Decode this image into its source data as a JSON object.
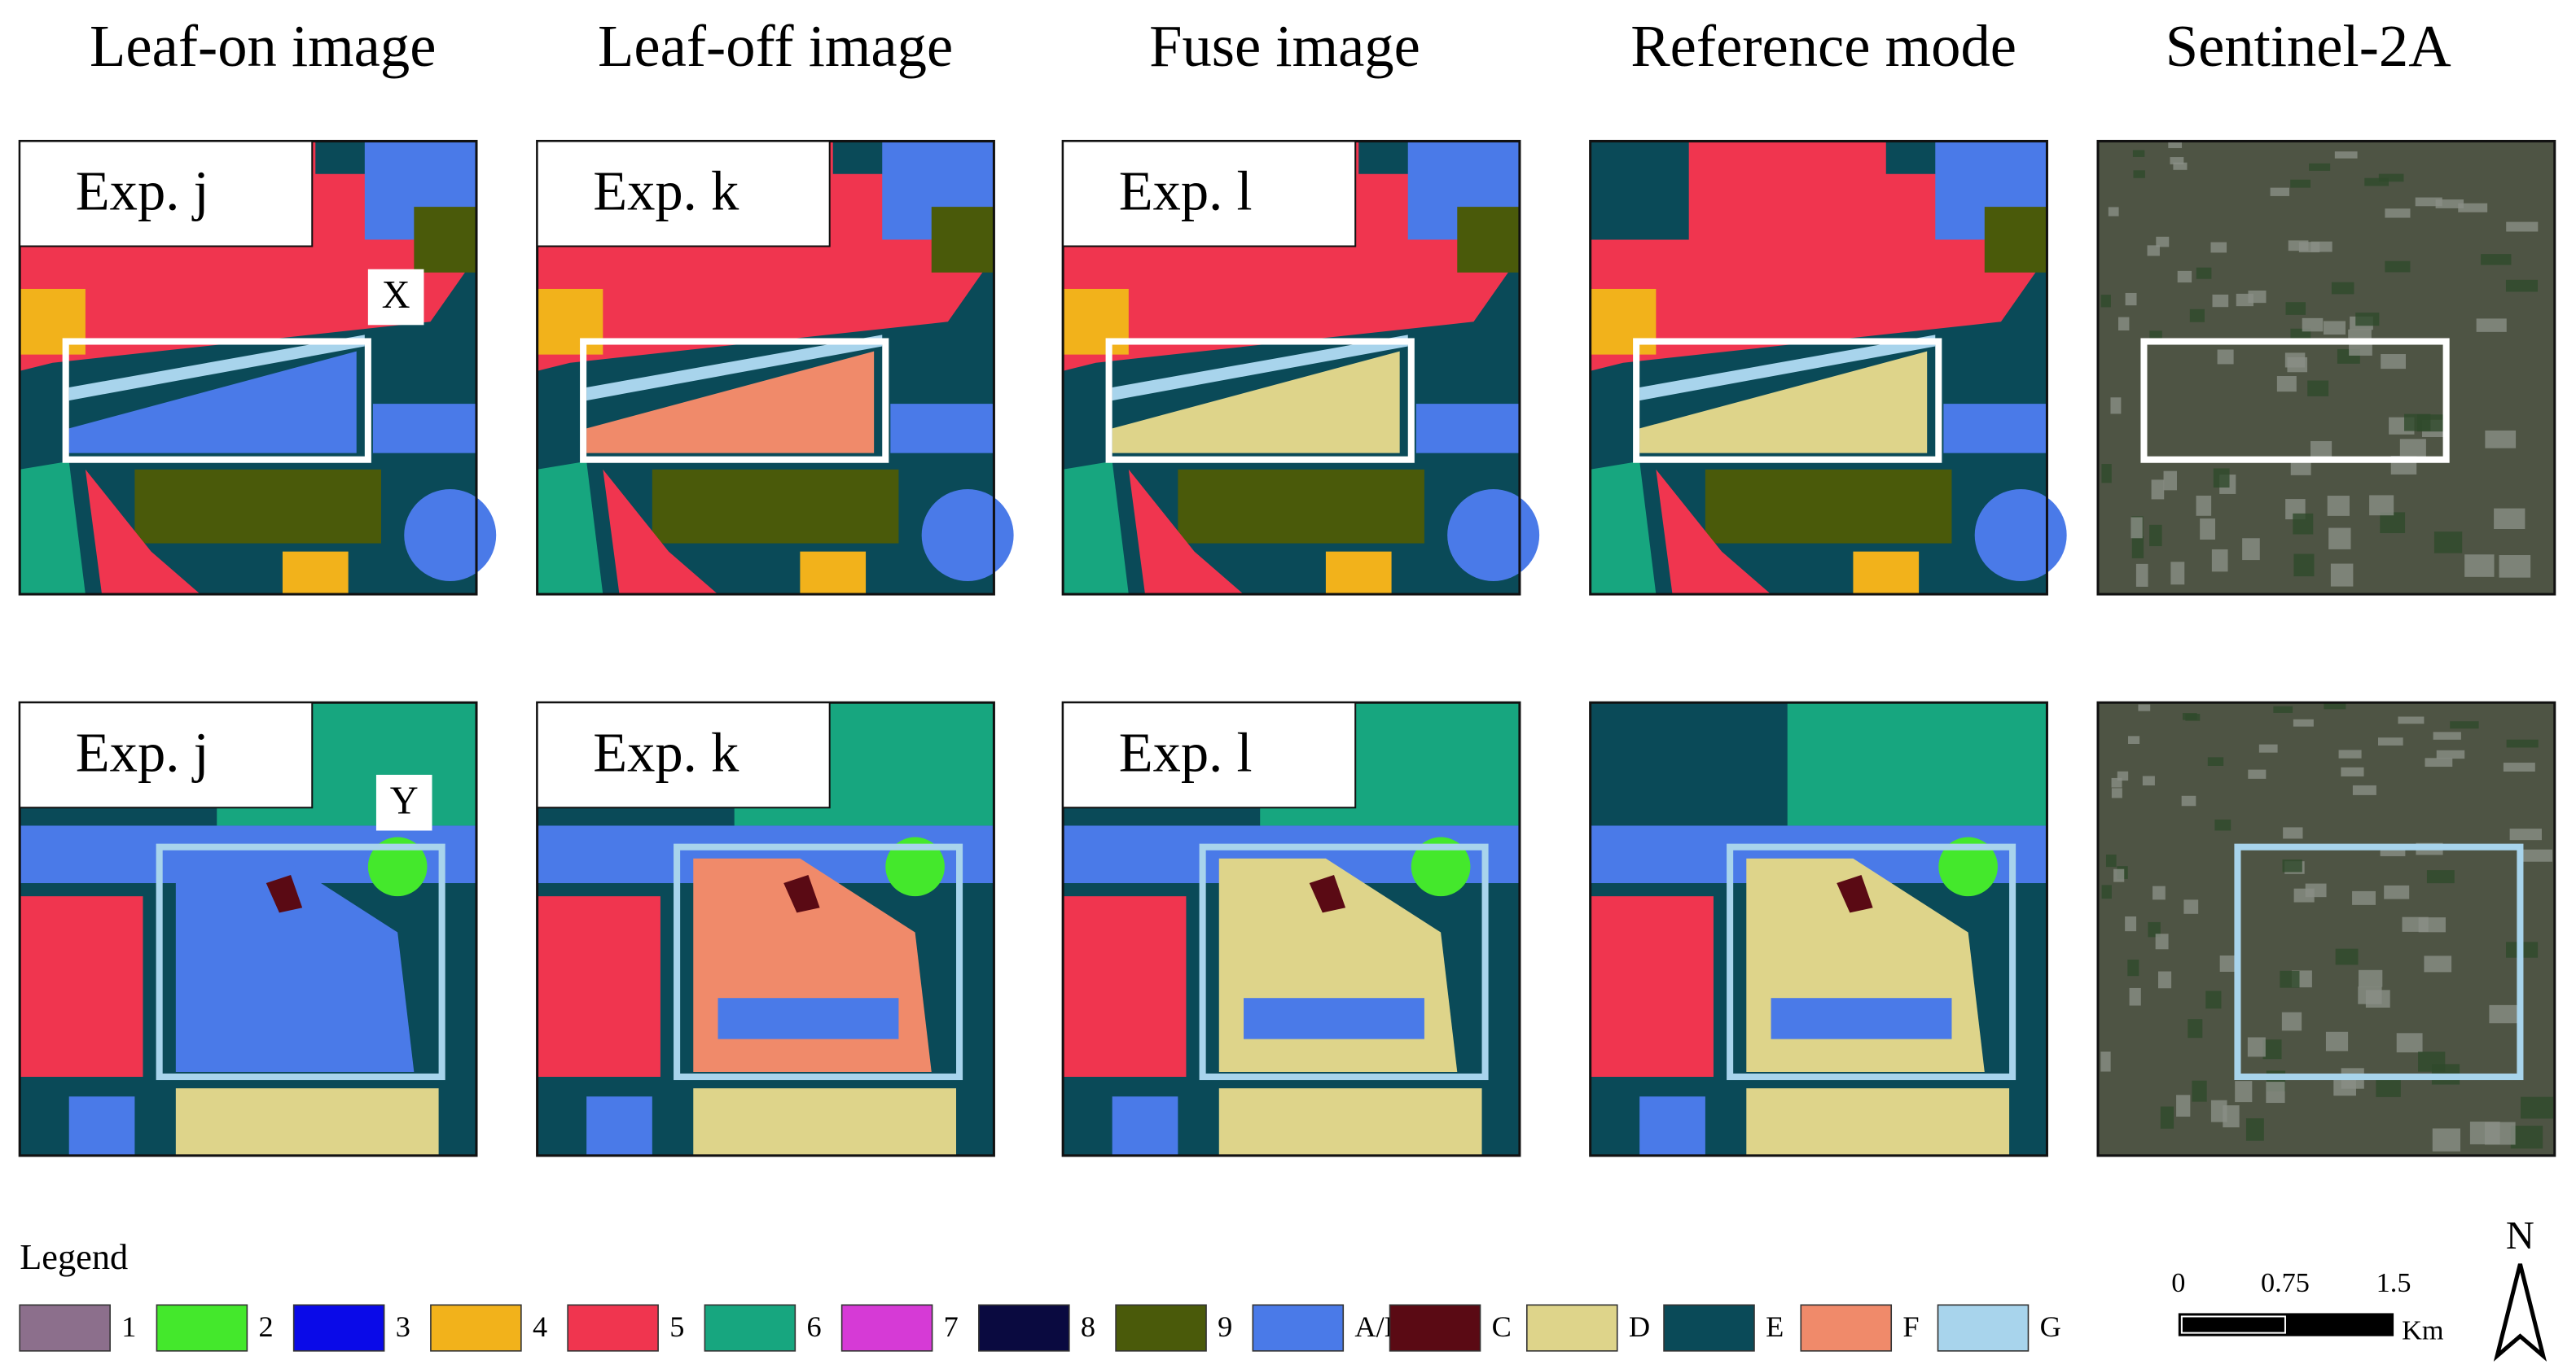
{
  "columns": [
    "Leaf-on image",
    "Leaf-off image",
    "Fuse image",
    "Reference mode",
    "Sentinel-2A"
  ],
  "rows": [
    {
      "labels": [
        "Exp. j",
        "Exp. k",
        "Exp. l"
      ],
      "marker": "X"
    },
    {
      "labels": [
        "Exp. j",
        "Exp. k",
        "Exp. l"
      ],
      "marker": "Y"
    }
  ],
  "legend": {
    "title": "Legend",
    "items": [
      {
        "label": "1",
        "color": "#8c6f8c"
      },
      {
        "label": "2",
        "color": "#44e82c"
      },
      {
        "label": "3",
        "color": "#0a0ae8"
      },
      {
        "label": "4",
        "color": "#f2b21b"
      },
      {
        "label": "5",
        "color": "#f0354f"
      },
      {
        "label": "6",
        "color": "#17a67f"
      },
      {
        "label": "7",
        "color": "#d63ad6"
      },
      {
        "label": "8",
        "color": "#0a0a40"
      },
      {
        "label": "9",
        "color": "#4a5a0a"
      },
      {
        "label": "A/B",
        "color": "#4a7ae8"
      },
      {
        "label": "C",
        "color": "#5a0a14"
      },
      {
        "label": "D",
        "color": "#ded48a"
      },
      {
        "label": "E",
        "color": "#0a4a58"
      },
      {
        "label": "F",
        "color": "#f08a6a"
      },
      {
        "label": "G",
        "color": "#a8d4ec"
      }
    ]
  },
  "scale_bar": {
    "ticks": [
      "0",
      "0.75",
      "1.5"
    ],
    "unit": "Km"
  },
  "north": "N"
}
